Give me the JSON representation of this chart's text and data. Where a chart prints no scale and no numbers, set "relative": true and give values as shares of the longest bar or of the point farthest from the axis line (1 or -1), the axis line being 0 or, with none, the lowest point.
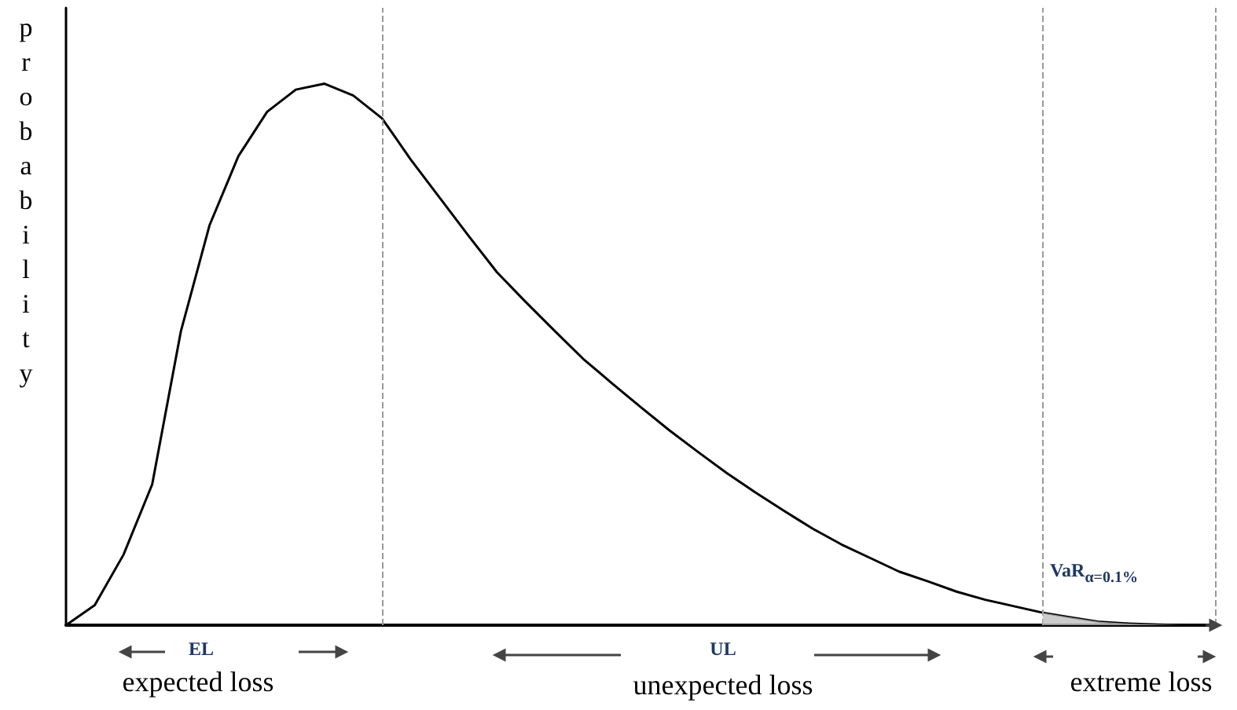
{
  "chart_data": {
    "type": "line",
    "relative": true,
    "ylabel": "probability",
    "grid": false,
    "marker": "none",
    "line_style": "solid",
    "categories": [
      null,
      null,
      null,
      null,
      null,
      null,
      null,
      null,
      null,
      null,
      null,
      null,
      null,
      null,
      null,
      null,
      null,
      null,
      null,
      null,
      null,
      null,
      null,
      null,
      null,
      null,
      null,
      null,
      null,
      null,
      null,
      null,
      null,
      null,
      null,
      null,
      null,
      null,
      null,
      null,
      null
    ],
    "series": [
      {
        "color": "#000000",
        "values": [
          0,
          0.037,
          0.13,
          0.26,
          0.543,
          0.739,
          0.866,
          0.948,
          0.989,
          1,
          0.978,
          0.936,
          0.86,
          0.79,
          0.72,
          0.652,
          0.597,
          0.544,
          0.492,
          0.447,
          0.403,
          0.36,
          0.32,
          0.281,
          0.245,
          0.211,
          0.178,
          0.149,
          0.124,
          0.099,
          0.081,
          0.062,
          0.047,
          0.035,
          0.023,
          0.014,
          0.006,
          0.003,
          0.001,
          0,
          0
        ]
      }
    ],
    "annotations": [
      "EL",
      "expected loss",
      "UL",
      "unexpected loss",
      "extreme loss",
      "VaR$_{α=0.1%}$"
    ]
  }
}
